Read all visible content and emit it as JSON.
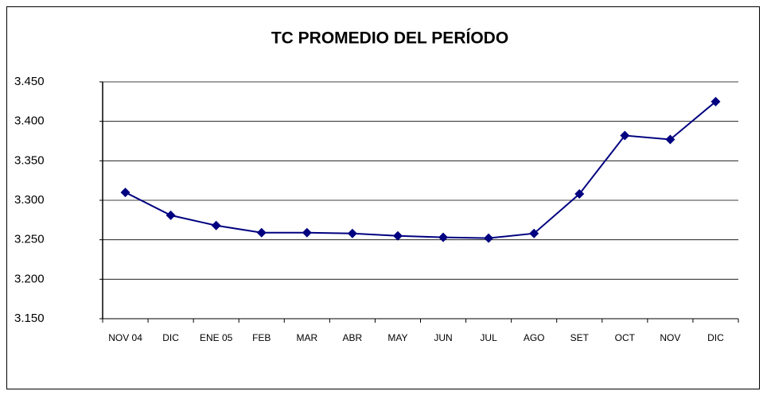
{
  "chart_data": {
    "type": "line",
    "title": "TC PROMEDIO DEL PERÍODO",
    "categories": [
      "NOV 04",
      "DIC",
      "ENE 05",
      "FEB",
      "MAR",
      "ABR",
      "MAY",
      "JUN",
      "JUL",
      "AGO",
      "SET",
      "OCT",
      "NOV",
      "DIC"
    ],
    "values": [
      3.31,
      3.281,
      3.268,
      3.259,
      3.259,
      3.258,
      3.255,
      3.253,
      3.252,
      3.258,
      3.308,
      3.382,
      3.377,
      3.425
    ],
    "color": "#000080",
    "ylim": [
      3.15,
      3.45
    ],
    "yticks": [
      {
        "value": 3.15,
        "label": "3.150"
      },
      {
        "value": 3.2,
        "label": "3.200"
      },
      {
        "value": 3.25,
        "label": "3.250"
      },
      {
        "value": 3.3,
        "label": "3.300"
      },
      {
        "value": 3.35,
        "label": "3.350"
      },
      {
        "value": 3.4,
        "label": "3.400"
      },
      {
        "value": 3.45,
        "label": "3.450"
      }
    ],
    "grid": true
  }
}
